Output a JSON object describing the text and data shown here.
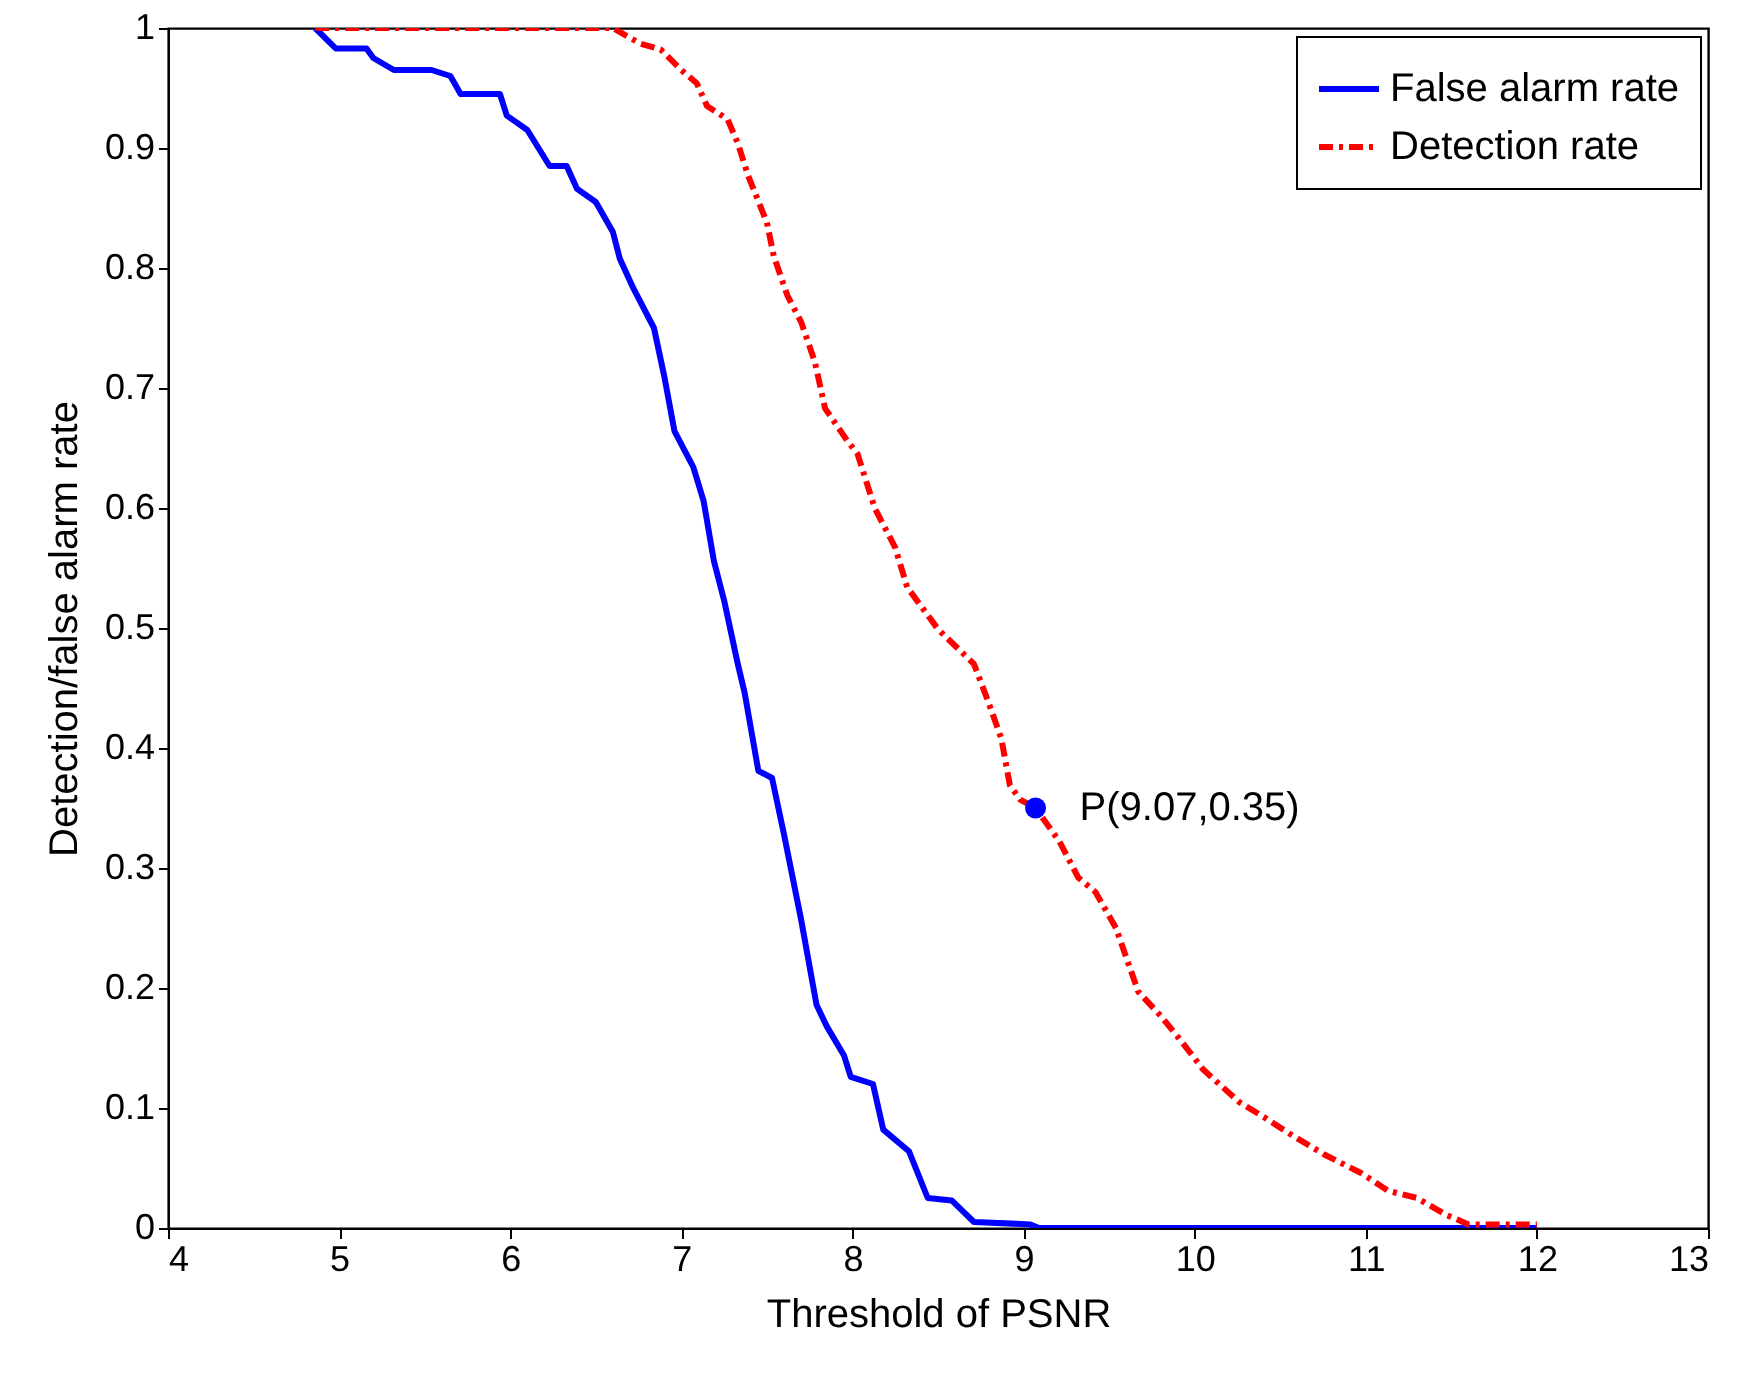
{
  "chart_data": {
    "type": "line",
    "xlabel": "Threshold of PSNR",
    "ylabel": "Detection/false alarm rate",
    "xlim": [
      4,
      13
    ],
    "ylim": [
      0,
      1
    ],
    "xticks": [
      4,
      5,
      6,
      7,
      8,
      9,
      10,
      11,
      12,
      13
    ],
    "yticks": [
      0,
      0.1,
      0.2,
      0.3,
      0.4,
      0.5,
      0.6,
      0.7,
      0.8,
      0.9,
      1
    ],
    "grid": false,
    "legend": "top right",
    "marker": "none",
    "series": [
      {
        "name": "False alarm rate",
        "color": "#0000ff",
        "line_style": "solid",
        "x": [
          4.86,
          4.98,
          5.16,
          5.2,
          5.32,
          5.54,
          5.65,
          5.71,
          5.94,
          5.98,
          6.1,
          6.23,
          6.33,
          6.39,
          6.5,
          6.6,
          6.64,
          6.72,
          6.84,
          6.9,
          6.96,
          7.07,
          7.13,
          7.19,
          7.25,
          7.33,
          7.37,
          7.45,
          7.53,
          7.6,
          7.7,
          7.79,
          7.85,
          7.95,
          7.99,
          8.12,
          8.18,
          8.33,
          8.44,
          8.58,
          8.71,
          9.04,
          9.09,
          12
        ],
        "values": [
          1,
          0.983,
          0.983,
          0.975,
          0.965,
          0.965,
          0.96,
          0.945,
          0.945,
          0.927,
          0.915,
          0.885,
          0.885,
          0.866,
          0.855,
          0.83,
          0.808,
          0.783,
          0.75,
          0.71,
          0.664,
          0.634,
          0.606,
          0.556,
          0.523,
          0.47,
          0.446,
          0.381,
          0.375,
          0.328,
          0.257,
          0.186,
          0.168,
          0.144,
          0.126,
          0.12,
          0.082,
          0.064,
          0.025,
          0.023,
          0.005,
          0.003,
          0,
          0
        ]
      },
      {
        "name": "Detection rate",
        "color": "#ff0000",
        "line_style": "dashed",
        "x": [
          4.86,
          6.6,
          6.76,
          6.88,
          7.0,
          7.09,
          7.15,
          7.27,
          7.33,
          7.39,
          7.5,
          7.54,
          7.62,
          7.7,
          7.78,
          7.84,
          7.97,
          8.03,
          8.13,
          8.25,
          8.32,
          8.5,
          8.71,
          8.79,
          8.87,
          8.92,
          8.98,
          9.07,
          9.21,
          9.32,
          9.42,
          9.54,
          9.67,
          9.8,
          9.92,
          10.05,
          10.26,
          10.42,
          10.55,
          10.76,
          10.97,
          11.13,
          11.3,
          11.47,
          11.6,
          12
        ],
        "values": [
          1,
          1,
          0.987,
          0.982,
          0.965,
          0.954,
          0.935,
          0.924,
          0.904,
          0.877,
          0.838,
          0.81,
          0.777,
          0.755,
          0.722,
          0.683,
          0.656,
          0.645,
          0.6,
          0.567,
          0.534,
          0.499,
          0.47,
          0.44,
          0.408,
          0.369,
          0.357,
          0.35,
          0.322,
          0.292,
          0.28,
          0.25,
          0.197,
          0.177,
          0.156,
          0.132,
          0.105,
          0.091,
          0.079,
          0.061,
          0.046,
          0.031,
          0.025,
          0.011,
          0.003,
          0.003
        ]
      },
      {
        "type": "scatter",
        "color": "#0000ff",
        "marker": "circle",
        "x": [
          9.07
        ],
        "values": [
          0.35
        ]
      }
    ],
    "annotations": [
      {
        "text": "P(9.07,0.35)",
        "x": 9.07,
        "y": 0.35
      }
    ]
  }
}
